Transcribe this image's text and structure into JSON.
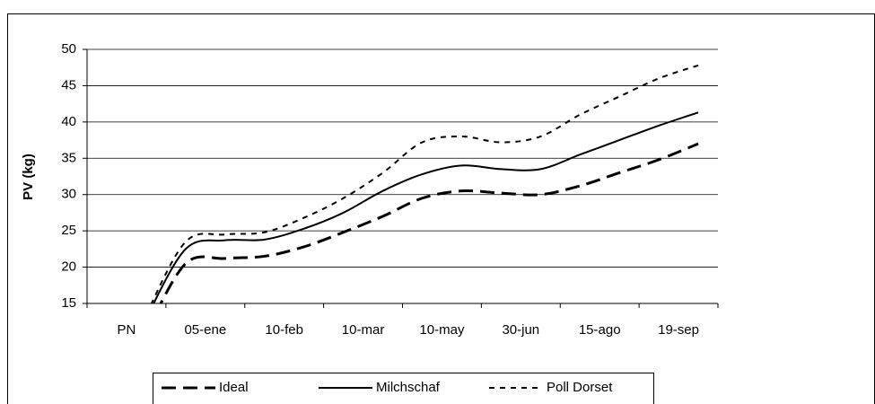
{
  "chart_data": {
    "type": "line",
    "y_label": "PV (kg)",
    "categories": [
      "PN",
      null,
      "05-ene",
      null,
      "10-feb",
      null,
      "10-mar",
      null,
      "10-may",
      null,
      "30-jun",
      null,
      "15-ago",
      null,
      "19-sep",
      null
    ],
    "ylim": [
      15,
      50
    ],
    "yticks": [
      15,
      20,
      25,
      30,
      35,
      40,
      45,
      50
    ],
    "grid": true,
    "legend": "bottom",
    "series": [
      {
        "name": "Ideal",
        "color": "#000000",
        "dash": "dashed",
        "values": [
          null,
          11,
          20.5,
          21.2,
          21.5,
          22.8,
          24.8,
          27,
          29.5,
          30.5,
          30.2,
          30,
          31.2,
          33,
          34.8,
          37
        ]
      },
      {
        "name": "Milchschaf",
        "color": "#000000",
        "dash": "solid",
        "values": [
          null,
          13,
          22.5,
          23.7,
          23.8,
          25.3,
          27.5,
          30.5,
          32.8,
          34,
          33.5,
          33.5,
          35.5,
          37.5,
          39.5,
          41.3
        ]
      },
      {
        "name": "Poll Dorset",
        "color": "#000000",
        "dash": "dotted",
        "values": [
          null,
          13.5,
          23.5,
          24.5,
          24.8,
          26.8,
          29.5,
          33,
          37.2,
          38,
          37.2,
          38,
          41,
          43.5,
          46,
          47.8
        ]
      }
    ]
  }
}
